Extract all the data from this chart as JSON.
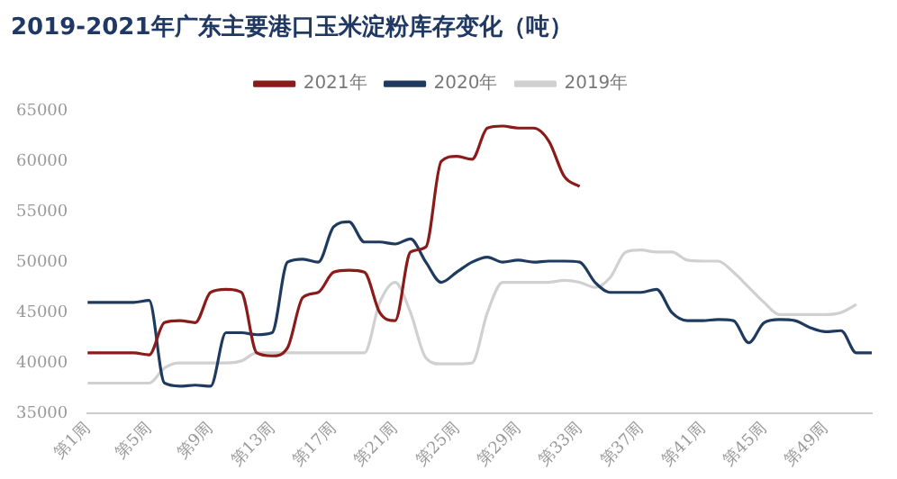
{
  "chart_data": {
    "type": "line",
    "title": "2019-2021年广东主要港口玉米淀粉库存变化（吨）",
    "categories": [
      "第1周",
      null,
      null,
      null,
      "第5周",
      null,
      null,
      null,
      "第9周",
      null,
      null,
      null,
      "第13周",
      null,
      null,
      null,
      "第17周",
      null,
      null,
      null,
      "第21周",
      null,
      null,
      null,
      "第25周",
      null,
      null,
      null,
      "第29周",
      null,
      null,
      null,
      "第33周",
      null,
      null,
      null,
      "第37周",
      null,
      null,
      null,
      "第41周",
      null,
      null,
      null,
      "第45周",
      null,
      null,
      null,
      "第49周",
      null,
      null,
      null
    ],
    "series": [
      {
        "name": "2021年",
        "color": "#8b1a1a",
        "values": [
          41000,
          41000,
          41000,
          41000,
          40800,
          44000,
          44200,
          44000,
          47000,
          47300,
          47000,
          41000,
          40700,
          41500,
          46500,
          47000,
          49000,
          49200,
          49000,
          45000,
          44200,
          51000,
          51500,
          60000,
          60500,
          60200,
          63300,
          63500,
          63300,
          63300,
          62000,
          58500,
          57500,
          null,
          null,
          null,
          null,
          null,
          null,
          null,
          null,
          null,
          null,
          null,
          null,
          null,
          null,
          null,
          null,
          null,
          null,
          null
        ]
      },
      {
        "name": "2020年",
        "color": "#1f3a5f",
        "values": [
          46000,
          46000,
          46000,
          46000,
          46200,
          38000,
          37700,
          37800,
          37700,
          43000,
          43000,
          42800,
          43000,
          50000,
          50300,
          50000,
          53500,
          54000,
          52000,
          52000,
          51800,
          52300,
          50000,
          48000,
          49000,
          50000,
          50500,
          50000,
          50200,
          50000,
          50100,
          50100,
          50000,
          48000,
          47000,
          47000,
          47000,
          47300,
          45000,
          44200,
          44200,
          44300,
          44200,
          42000,
          44000,
          44300,
          44200,
          43500,
          43100,
          43200,
          41000,
          41000
        ]
      },
      {
        "name": "2019年",
        "color": "#d0d0d0",
        "values": [
          38000,
          38000,
          38000,
          38000,
          38000,
          39500,
          40000,
          40000,
          40000,
          40000,
          40200,
          41000,
          41000,
          41000,
          41000,
          41000,
          41000,
          41000,
          41000,
          46000,
          48000,
          45000,
          40500,
          39900,
          39900,
          40000,
          45000,
          48000,
          48000,
          48000,
          48000,
          48200,
          48000,
          47500,
          48500,
          51000,
          51200,
          51000,
          51000,
          50200,
          50100,
          50100,
          49000,
          47500,
          46000,
          44800,
          44800,
          44800,
          44800,
          45000,
          45800,
          null
        ]
      }
    ],
    "ylim": [
      35000,
      65000
    ],
    "yticks": [
      35000,
      40000,
      45000,
      50000,
      55000,
      60000,
      65000
    ],
    "grid": false,
    "legend": "top",
    "marker": "none",
    "line_style": "solid"
  }
}
